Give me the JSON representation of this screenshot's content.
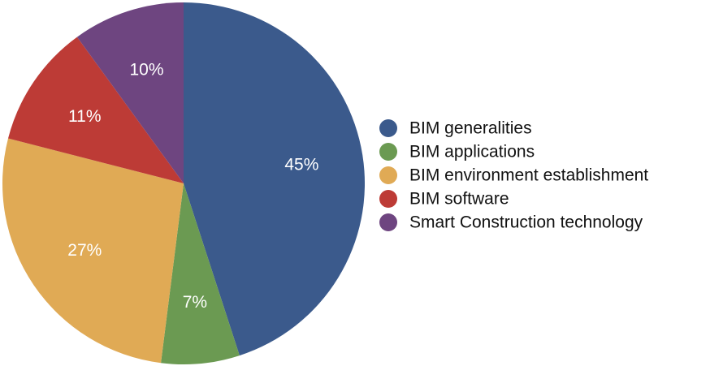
{
  "chart_data": {
    "type": "pie",
    "categories": [
      "BIM generalities",
      "BIM applications",
      "BIM environment establishment",
      "BIM software",
      "Smart Construction technology"
    ],
    "values": [
      45,
      7,
      27,
      11,
      10
    ],
    "data_labels": [
      "45%",
      "7%",
      "27%",
      "11%",
      "10%"
    ],
    "colors": [
      "#3b5a8c",
      "#6b9a52",
      "#e0aa55",
      "#bd3b36",
      "#6e4580"
    ],
    "start_angle_deg": 0,
    "direction": "clockwise",
    "legend": "right",
    "title": ""
  }
}
